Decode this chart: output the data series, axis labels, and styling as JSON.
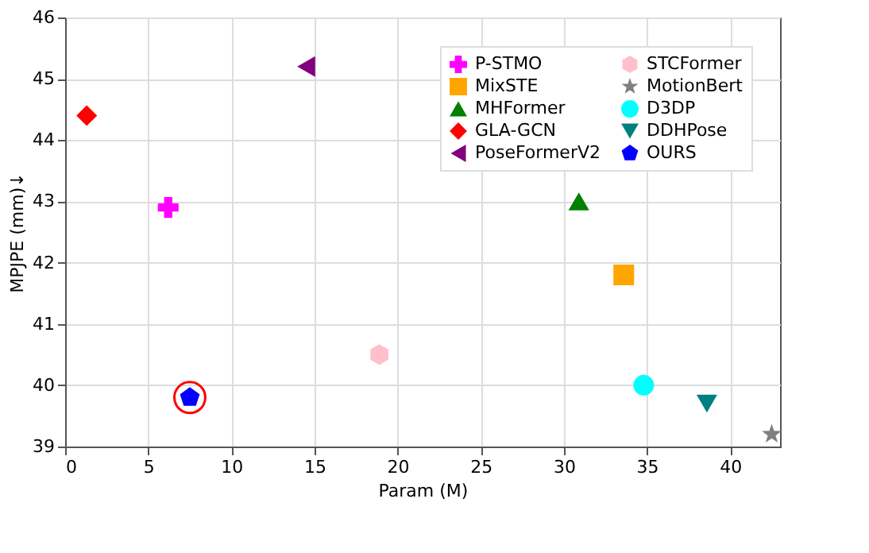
{
  "chart_data": {
    "type": "scatter",
    "xlabel": "Param (M)",
    "ylabel": "MPJPE (mm)↓",
    "xlim": [
      0,
      43
    ],
    "xticks": [
      0,
      5,
      10,
      15,
      20,
      25,
      30,
      35,
      40
    ],
    "ylim": [
      39,
      46
    ],
    "yticks": [
      39,
      40,
      41,
      42,
      43,
      44,
      45,
      46
    ],
    "grid": true,
    "legend": "top right",
    "series": [
      {
        "name": "P-STMO",
        "color": "#ff00ff",
        "marker": "cross",
        "x": [
          6.2
        ],
        "values": [
          42.9
        ]
      },
      {
        "name": "MixSTE",
        "color": "#ffa500",
        "marker": "square",
        "x": [
          33.6
        ],
        "values": [
          41.8
        ]
      },
      {
        "name": "MHFormer",
        "color": "#008000",
        "marker": "triangle",
        "x": [
          30.9
        ],
        "values": [
          43.0
        ]
      },
      {
        "name": "GLA-GCN",
        "color": "#ff0000",
        "marker": "diamond",
        "x": [
          1.3
        ],
        "values": [
          44.4
        ]
      },
      {
        "name": "PoseFormerV2",
        "color": "#800080",
        "marker": "triangle-left",
        "x": [
          14.5
        ],
        "values": [
          45.2
        ]
      },
      {
        "name": "STCFormer",
        "color": "#ffc0cb",
        "x": [
          18.9
        ],
        "values": [
          40.5
        ]
      },
      {
        "name": "MotionBert",
        "color": "#808080",
        "marker": "star",
        "x": [
          42.5
        ],
        "values": [
          39.2
        ]
      },
      {
        "name": "D3DP",
        "color": "#00ffff",
        "marker": "circle",
        "x": [
          34.8
        ],
        "values": [
          40.0
        ]
      },
      {
        "name": "DDHPose",
        "color": "#008080",
        "marker": "triangle-down",
        "x": [
          38.6
        ],
        "values": [
          39.7
        ]
      },
      {
        "name": "OURS",
        "color": "#0000ff",
        "x": [
          7.5
        ],
        "values": [
          39.8
        ]
      },
      {
        "color": "#ff0000",
        "marker": "circle",
        "x": [
          7.5
        ],
        "values": [
          39.8
        ]
      }
    ]
  }
}
